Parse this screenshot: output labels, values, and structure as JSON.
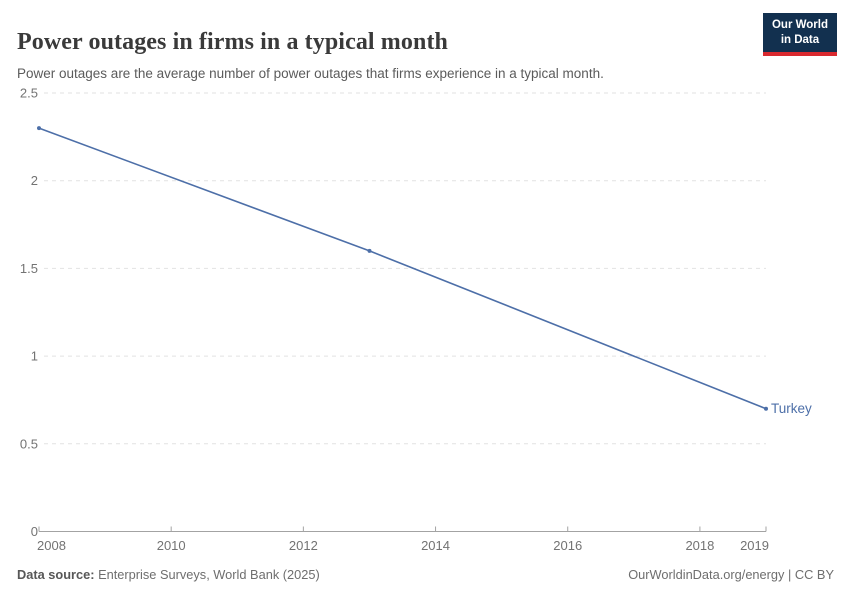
{
  "header": {
    "title": "Power outages in firms in a typical month",
    "subtitle": "Power outages are the average number of power outages that firms experience in a typical month.",
    "logo": {
      "line1": "Our World",
      "line2": "in Data",
      "bg_color": "#12304f",
      "accent_color": "#d9292f"
    }
  },
  "footer": {
    "source_label": "Data source:",
    "source_text": "Enterprise Surveys, World Bank (2025)",
    "credit": "OurWorldinData.org/energy | CC BY"
  },
  "chart_data": {
    "type": "line",
    "title": "Power outages in firms in a typical month",
    "xlabel": "",
    "ylabel": "",
    "xlim": [
      2008,
      2019
    ],
    "ylim": [
      0,
      2.5
    ],
    "x_ticks": [
      2008,
      2010,
      2012,
      2014,
      2016,
      2018,
      2019
    ],
    "y_ticks": [
      0,
      0.5,
      1,
      1.5,
      2,
      2.5
    ],
    "grid": "horizontal-dashed",
    "legend_position": "end-of-line-label",
    "series": [
      {
        "name": "Turkey",
        "color": "#4d6fa8",
        "x": [
          2008,
          2013,
          2019
        ],
        "values": [
          2.3,
          1.6,
          0.7
        ]
      }
    ],
    "axis_color": "#a3a3a3",
    "grid_color": "#e2e2e2",
    "tick_label_color": "#737373"
  }
}
